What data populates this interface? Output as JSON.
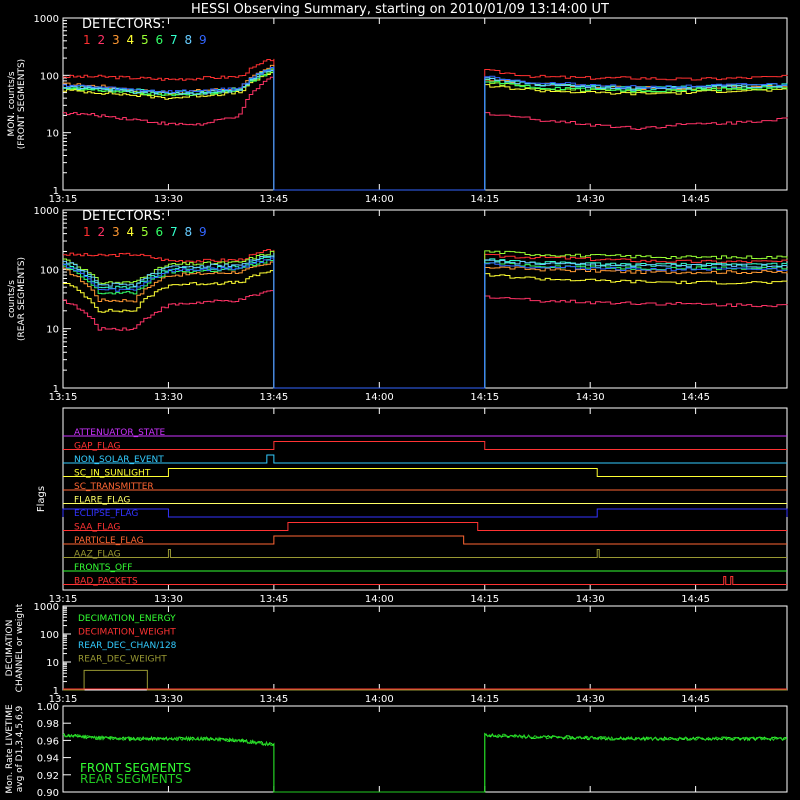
{
  "title": "HESSI Observing Summary, starting on 2010/01/09 13:14:00 UT",
  "colors": {
    "background": "#000000",
    "axis": "#ffffff",
    "detectors": [
      "#ff3030",
      "#ff3366",
      "#ff9933",
      "#ffff33",
      "#99ff33",
      "#33ff66",
      "#33ffcc",
      "#66ccff",
      "#3366ff"
    ],
    "flags": {
      "attenuator": "#cc33ff",
      "gap": "#ff3333",
      "non_solar": "#33ccff",
      "sunlight": "#ffff33",
      "transmitter": "#ff6633",
      "flare": "#ffff66",
      "eclipse": "#3333ff",
      "saa": "#ff3333",
      "particle": "#ff6633",
      "aaz": "#999933",
      "fronts_off": "#33ff33",
      "bad_packets": "#ff3333"
    },
    "dec_energy": "#33ff33",
    "dec_weight": "#ff3333",
    "rear_chan": "#33ccff",
    "rear_weight": "#999933",
    "livetime_front": "#33ff33",
    "livetime_rear": "#22cc22"
  },
  "time_axis": {
    "ticks": [
      "13:15",
      "13:30",
      "13:45",
      "14:00",
      "14:15",
      "14:30",
      "14:45"
    ],
    "tick_minutes": [
      15,
      30,
      45,
      60,
      75,
      90,
      105
    ],
    "start_minutes": 15,
    "end_minutes": 118
  },
  "panel1": {
    "ylabel": "MON. counts/s",
    "ylabel2": "(FRONT SEGMENTS)",
    "legend_title": "DETECTORS:",
    "yticks": [
      "1",
      "10",
      "100",
      "1000"
    ]
  },
  "panel2": {
    "ylabel": "counts/s",
    "ylabel2": "(REAR SEGMENTS)",
    "legend_title": "DETECTORS:",
    "yticks": [
      "1",
      "10",
      "100",
      "1000"
    ]
  },
  "detector_labels": [
    "1",
    "2",
    "3",
    "4",
    "5",
    "6",
    "7",
    "8",
    "9"
  ],
  "panel3": {
    "ylabel": "Flags",
    "flags": [
      {
        "name": "ATTENUATOR_STATE",
        "key": "attenuator"
      },
      {
        "name": "GAP_FLAG",
        "key": "gap"
      },
      {
        "name": "NON_SOLAR_EVENT",
        "key": "non_solar"
      },
      {
        "name": "SC_IN_SUNLIGHT",
        "key": "sunlight"
      },
      {
        "name": "SC_TRANSMITTER",
        "key": "transmitter"
      },
      {
        "name": "FLARE_FLAG",
        "key": "flare"
      },
      {
        "name": "ECLIPSE_FLAG",
        "key": "eclipse"
      },
      {
        "name": "SAA_FLAG",
        "key": "saa"
      },
      {
        "name": "PARTICLE_FLAG",
        "key": "particle"
      },
      {
        "name": "AAZ_FLAG",
        "key": "aaz"
      },
      {
        "name": "FRONTS_OFF",
        "key": "fronts_off"
      },
      {
        "name": "BAD_PACKETS",
        "key": "bad_packets"
      }
    ]
  },
  "panel4": {
    "ylabel": "DECIMATION",
    "ylabel2": "CHANNEL or weight",
    "yticks": [
      "1",
      "10",
      "100",
      "1000"
    ],
    "legend": [
      "DECIMATION_ENERGY",
      "DECIMATION_WEIGHT",
      "REAR_DEC_CHAN/128",
      "REAR_DEC_WEIGHT"
    ]
  },
  "panel5": {
    "ylabel": "Mon. Rate LIVETIME",
    "ylabel2": "avg of D1,3,4,5,6,9",
    "yticks": [
      "0.90",
      "0.92",
      "0.94",
      "0.96",
      "0.98",
      "1.00"
    ],
    "legend": [
      "FRONT SEGMENTS",
      "REAR SEGMENTS"
    ]
  },
  "chart_data": [
    {
      "type": "line",
      "ylabel": "MON. counts/s (FRONT SEGMENTS)",
      "yscale": "log",
      "ylim": [
        1,
        1000
      ],
      "x_range_utc": [
        "13:15",
        "14:58"
      ],
      "data_gap_utc": [
        "13:45",
        "14:15"
      ],
      "series": [
        {
          "name": "1",
          "segment1": [
            95,
            95,
            90,
            85,
            90,
            95,
            200
          ],
          "segment2": [
            120,
            95,
            90,
            90,
            85,
            90,
            95
          ]
        },
        {
          "name": "2",
          "segment1": [
            22,
            20,
            17,
            14,
            14,
            20,
            100
          ],
          "segment2": [
            22,
            17,
            14,
            12,
            14,
            15,
            18
          ]
        },
        {
          "name": "3",
          "segment1": [
            70,
            65,
            55,
            50,
            55,
            60,
            150
          ],
          "segment2": [
            85,
            70,
            65,
            60,
            60,
            65,
            65
          ]
        },
        {
          "name": "4",
          "segment1": [
            55,
            50,
            45,
            40,
            45,
            50,
            120
          ],
          "segment2": [
            65,
            55,
            50,
            48,
            50,
            55,
            55
          ]
        },
        {
          "name": "5",
          "segment1": [
            60,
            55,
            50,
            45,
            48,
            55,
            130
          ],
          "segment2": [
            75,
            60,
            55,
            52,
            55,
            58,
            60
          ]
        },
        {
          "name": "6",
          "segment1": [
            58,
            55,
            50,
            46,
            48,
            54,
            125
          ],
          "segment2": [
            78,
            62,
            58,
            55,
            56,
            60,
            62
          ]
        },
        {
          "name": "7",
          "segment1": [
            65,
            60,
            55,
            50,
            52,
            58,
            140
          ],
          "segment2": [
            90,
            70,
            65,
            60,
            62,
            66,
            68
          ]
        },
        {
          "name": "8",
          "segment1": [
            62,
            58,
            52,
            48,
            50,
            56,
            135
          ],
          "segment2": [
            88,
            68,
            62,
            58,
            60,
            64,
            66
          ]
        },
        {
          "name": "9",
          "segment1": [
            68,
            62,
            56,
            52,
            54,
            60,
            145
          ],
          "segment2": [
            95,
            75,
            68,
            62,
            64,
            68,
            70
          ]
        }
      ]
    },
    {
      "type": "line",
      "ylabel": "counts/s (REAR SEGMENTS)",
      "yscale": "log",
      "ylim": [
        1,
        1000
      ],
      "x_range_utc": [
        "13:15",
        "14:58"
      ],
      "data_gap_utc": [
        "13:45",
        "14:15"
      ],
      "series": [
        {
          "name": "1",
          "segment1": [
            180,
            170,
            180,
            140,
            140,
            145,
            220
          ],
          "segment2": [
            170,
            160,
            150,
            140,
            135,
            135,
            135
          ]
        },
        {
          "name": "2",
          "segment1": [
            30,
            10,
            10,
            25,
            28,
            30,
            45
          ],
          "segment2": [
            35,
            30,
            28,
            27,
            26,
            25,
            25
          ]
        },
        {
          "name": "3",
          "segment1": [
            100,
            30,
            30,
            80,
            85,
            90,
            130
          ],
          "segment2": [
            110,
            100,
            95,
            90,
            90,
            90,
            90
          ]
        },
        {
          "name": "4",
          "segment1": [
            60,
            20,
            20,
            55,
            58,
            60,
            100
          ],
          "segment2": [
            80,
            70,
            65,
            62,
            60,
            60,
            60
          ]
        },
        {
          "name": "5",
          "segment1": [
            150,
            60,
            60,
            120,
            125,
            130,
            200
          ],
          "segment2": [
            200,
            180,
            170,
            165,
            160,
            160,
            160
          ]
        },
        {
          "name": "6",
          "segment1": [
            110,
            40,
            40,
            90,
            95,
            100,
            150
          ],
          "segment2": [
            130,
            115,
            110,
            105,
            105,
            105,
            105
          ]
        },
        {
          "name": "7",
          "segment1": [
            130,
            50,
            50,
            100,
            105,
            110,
            170
          ],
          "segment2": [
            150,
            130,
            125,
            120,
            120,
            120,
            120
          ]
        },
        {
          "name": "8",
          "segment1": [
            140,
            55,
            55,
            110,
            115,
            120,
            180
          ],
          "segment2": [
            140,
            125,
            120,
            115,
            115,
            115,
            115
          ]
        },
        {
          "name": "9",
          "segment1": [
            120,
            45,
            45,
            95,
            100,
            105,
            160
          ],
          "segment2": [
            125,
            110,
            105,
            100,
            100,
            100,
            100
          ]
        }
      ]
    },
    {
      "type": "line",
      "ylabel": "Flags",
      "series": [
        {
          "name": "ATTENUATOR_STATE",
          "on_intervals_utc": []
        },
        {
          "name": "GAP_FLAG",
          "on_intervals_utc": [
            [
              "13:45",
              "14:15"
            ]
          ]
        },
        {
          "name": "NON_SOLAR_EVENT",
          "on_intervals_utc": [
            [
              "13:44",
              "13:45"
            ]
          ]
        },
        {
          "name": "SC_IN_SUNLIGHT",
          "on_intervals_utc": [
            [
              "13:30",
              "14:31"
            ]
          ]
        },
        {
          "name": "SC_TRANSMITTER",
          "on_intervals_utc": []
        },
        {
          "name": "FLARE_FLAG",
          "on_intervals_utc": []
        },
        {
          "name": "ECLIPSE_FLAG",
          "on_intervals_utc": [
            [
              "13:15",
              "13:30"
            ],
            [
              "14:31",
              "14:58"
            ]
          ]
        },
        {
          "name": "SAA_FLAG",
          "on_intervals_utc": [
            [
              "13:47",
              "14:14"
            ]
          ]
        },
        {
          "name": "PARTICLE_FLAG",
          "on_intervals_utc": [
            [
              "13:45",
              "14:12"
            ]
          ]
        },
        {
          "name": "AAZ_FLAG",
          "on_intervals_utc": [
            [
              "13:30",
              "13:30"
            ],
            [
              "14:31",
              "14:31"
            ]
          ]
        },
        {
          "name": "FRONTS_OFF",
          "on_intervals_utc": []
        },
        {
          "name": "BAD_PACKETS",
          "on_intervals_utc": [
            [
              "14:49",
              "14:49"
            ],
            [
              "14:50",
              "14:50"
            ]
          ]
        }
      ]
    },
    {
      "type": "line",
      "ylabel": "DECIMATION CHANNEL or weight",
      "yscale": "log",
      "ylim": [
        1,
        1000
      ],
      "series": [
        {
          "name": "DECIMATION_ENERGY",
          "values": [
            1
          ]
        },
        {
          "name": "DECIMATION_WEIGHT",
          "values": [
            1
          ]
        },
        {
          "name": "REAR_DEC_CHAN/128",
          "values": [
            1
          ]
        },
        {
          "name": "REAR_DEC_WEIGHT",
          "pulse_utc": [
            "13:18",
            "13:27"
          ],
          "value": 5
        }
      ]
    },
    {
      "type": "line",
      "ylabel": "Mon. Rate LIVETIME avg of D1,3,4,5,6,9",
      "ylim": [
        0.9,
        1.0
      ],
      "series": [
        {
          "name": "FRONT SEGMENTS",
          "segment1": [
            0.966,
            0.963,
            0.962,
            0.962,
            0.962,
            0.96,
            0.955
          ],
          "segment2": [
            0.966,
            0.964,
            0.963,
            0.962,
            0.962,
            0.962,
            0.962
          ]
        },
        {
          "name": "REAR SEGMENTS",
          "segment1": [
            0.966,
            0.963,
            0.962,
            0.962,
            0.962,
            0.96,
            0.955
          ],
          "segment2": [
            0.966,
            0.964,
            0.963,
            0.962,
            0.962,
            0.962,
            0.962
          ]
        }
      ]
    }
  ]
}
